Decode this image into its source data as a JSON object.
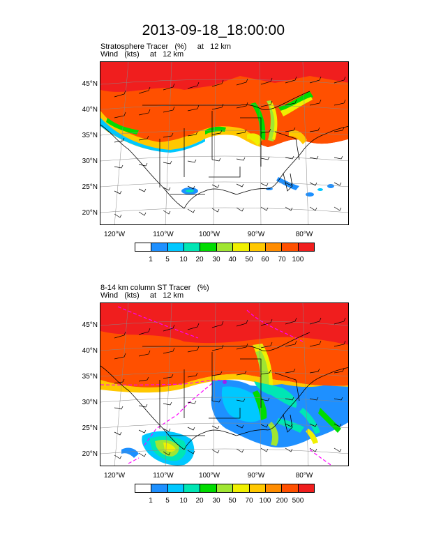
{
  "title": "2013-09-18_18:00:00",
  "panels": [
    {
      "subtitle_line1": "Stratosphere Tracer   (%)     at   12 km",
      "subtitle_line2": "Wind   (kts)     at   12 km",
      "lat_labels": [
        "45°N",
        "40°N",
        "35°N",
        "30°N",
        "25°N",
        "20°N"
      ],
      "lon_labels": [
        "120°W",
        "110°W",
        "100°W",
        "90°W",
        "80°W"
      ],
      "colorbar_labels": [
        "1",
        "5",
        "10",
        "20",
        "30",
        "40",
        "50",
        "60",
        "70",
        "100"
      ]
    },
    {
      "subtitle_line1": "8-14 km column ST Tracer   (%)",
      "subtitle_line2": "Wind   (kts)     at   12 km",
      "lat_labels": [
        "45°N",
        "40°N",
        "35°N",
        "30°N",
        "25°N",
        "20°N"
      ],
      "lon_labels": [
        "120°W",
        "110°W",
        "100°W",
        "90°W",
        "80°W"
      ],
      "colorbar_labels": [
        "1",
        "5",
        "10",
        "20",
        "30",
        "50",
        "70",
        "100",
        "200",
        "500"
      ]
    }
  ],
  "colorbar_colors": [
    "#ffffff",
    "#1e90ff",
    "#00c8ff",
    "#00e6b4",
    "#00dc00",
    "#a0e632",
    "#f0f000",
    "#ffc800",
    "#ff8c00",
    "#ff5000",
    "#f01e1e"
  ]
}
